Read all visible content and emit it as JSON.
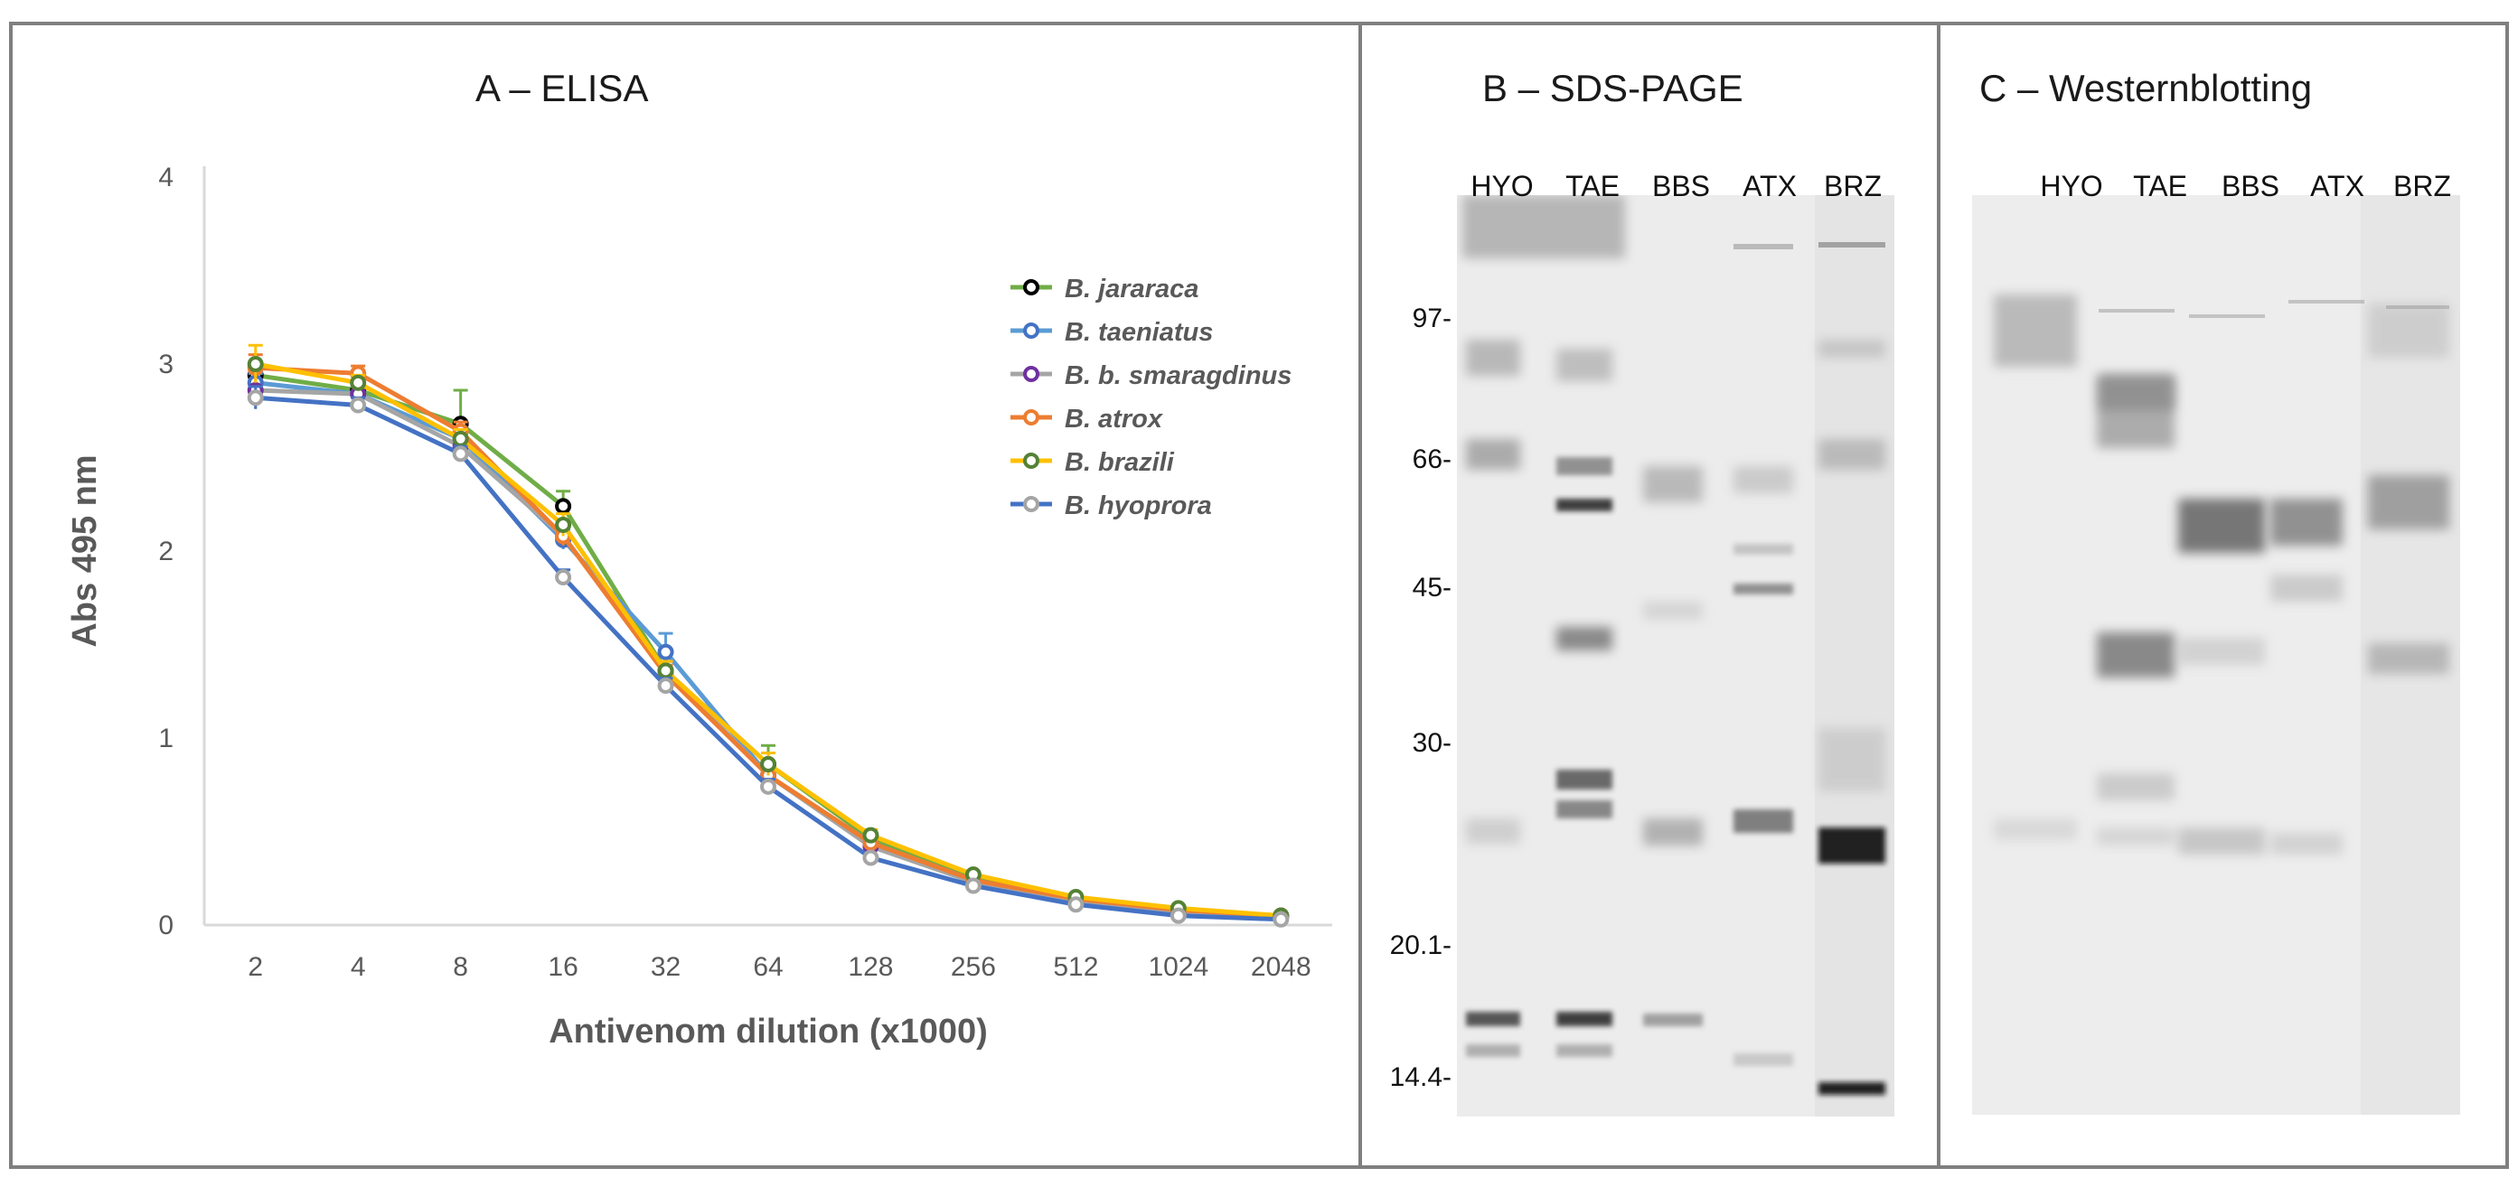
{
  "panels": {
    "elisa": {
      "title": "A – ELISA"
    },
    "sds": {
      "title": "B – SDS-PAGE"
    },
    "western": {
      "title": "C – Westernblotting"
    }
  },
  "chart_data": {
    "type": "line",
    "title": "A – ELISA",
    "xlabel": "Antivenom dilution (x1000)",
    "ylabel": "Abs 495 nm",
    "categories": [
      "2",
      "4",
      "8",
      "16",
      "32",
      "64",
      "128",
      "256",
      "512",
      "1024",
      "2048"
    ],
    "ylim": [
      0,
      4
    ],
    "yticks": [
      "0",
      "1",
      "2",
      "3",
      "4"
    ],
    "grid": false,
    "legend_position": "top-right",
    "series": [
      {
        "name": "B. jararaca",
        "color": "#70ad47",
        "marker": "#000000",
        "values": [
          2.94,
          2.86,
          2.68,
          2.24,
          1.36,
          0.86,
          0.46,
          0.25,
          0.14,
          0.08,
          0.05
        ],
        "errors": [
          0.06,
          0.05,
          0.18,
          0.08,
          0.05,
          0.1,
          0.03,
          0.02,
          0.01,
          0.01,
          0.01
        ]
      },
      {
        "name": "B. taeniatus",
        "color": "#5b9bd5",
        "marker": "#4472c4",
        "values": [
          2.9,
          2.84,
          2.6,
          2.06,
          1.46,
          0.8,
          0.43,
          0.24,
          0.13,
          0.07,
          0.05
        ],
        "errors": [
          0.05,
          0.04,
          0.06,
          0.05,
          0.1,
          0.05,
          0.03,
          0.02,
          0.01,
          0.01,
          0.01
        ]
      },
      {
        "name": "B. b. smaragdinus",
        "color": "#a5a5a5",
        "marker": "#7030a0",
        "values": [
          2.86,
          2.84,
          2.56,
          2.08,
          1.36,
          0.8,
          0.42,
          0.23,
          0.13,
          0.07,
          0.04
        ],
        "errors": [
          0.1,
          0.04,
          0.06,
          0.05,
          0.05,
          0.04,
          0.03,
          0.02,
          0.01,
          0.01,
          0.01
        ]
      },
      {
        "name": "B. atrox",
        "color": "#ed7d31",
        "marker": "#ed7d31",
        "values": [
          2.98,
          2.95,
          2.64,
          2.08,
          1.34,
          0.8,
          0.44,
          0.24,
          0.14,
          0.08,
          0.05
        ],
        "errors": [
          0.07,
          0.04,
          0.05,
          0.05,
          0.05,
          0.04,
          0.03,
          0.02,
          0.01,
          0.01,
          0.01
        ]
      },
      {
        "name": "B. brazili",
        "color": "#ffc000",
        "marker": "#548235",
        "values": [
          3.0,
          2.9,
          2.6,
          2.14,
          1.36,
          0.86,
          0.48,
          0.27,
          0.15,
          0.09,
          0.05
        ],
        "errors": [
          0.1,
          0.04,
          0.05,
          0.06,
          0.05,
          0.06,
          0.03,
          0.02,
          0.01,
          0.01,
          0.01
        ]
      },
      {
        "name": "B. hyoprora",
        "color": "#4472c4",
        "marker": "#a5a5a5",
        "values": [
          2.82,
          2.78,
          2.52,
          1.86,
          1.28,
          0.74,
          0.36,
          0.21,
          0.11,
          0.05,
          0.03
        ],
        "errors": [
          0.06,
          0.04,
          0.04,
          0.04,
          0.04,
          0.04,
          0.02,
          0.01,
          0.01,
          0.01,
          0.01
        ]
      }
    ]
  },
  "gels": {
    "sds_lanes": [
      "HYO",
      "TAE",
      "BBS",
      "ATX",
      "BRZ"
    ],
    "western_lanes": [
      "HYO",
      "TAE",
      "BBS",
      "ATX",
      "BRZ"
    ],
    "markers": [
      "97-",
      "66-",
      "45-",
      "30-",
      "20.1-",
      "14.4-"
    ]
  }
}
